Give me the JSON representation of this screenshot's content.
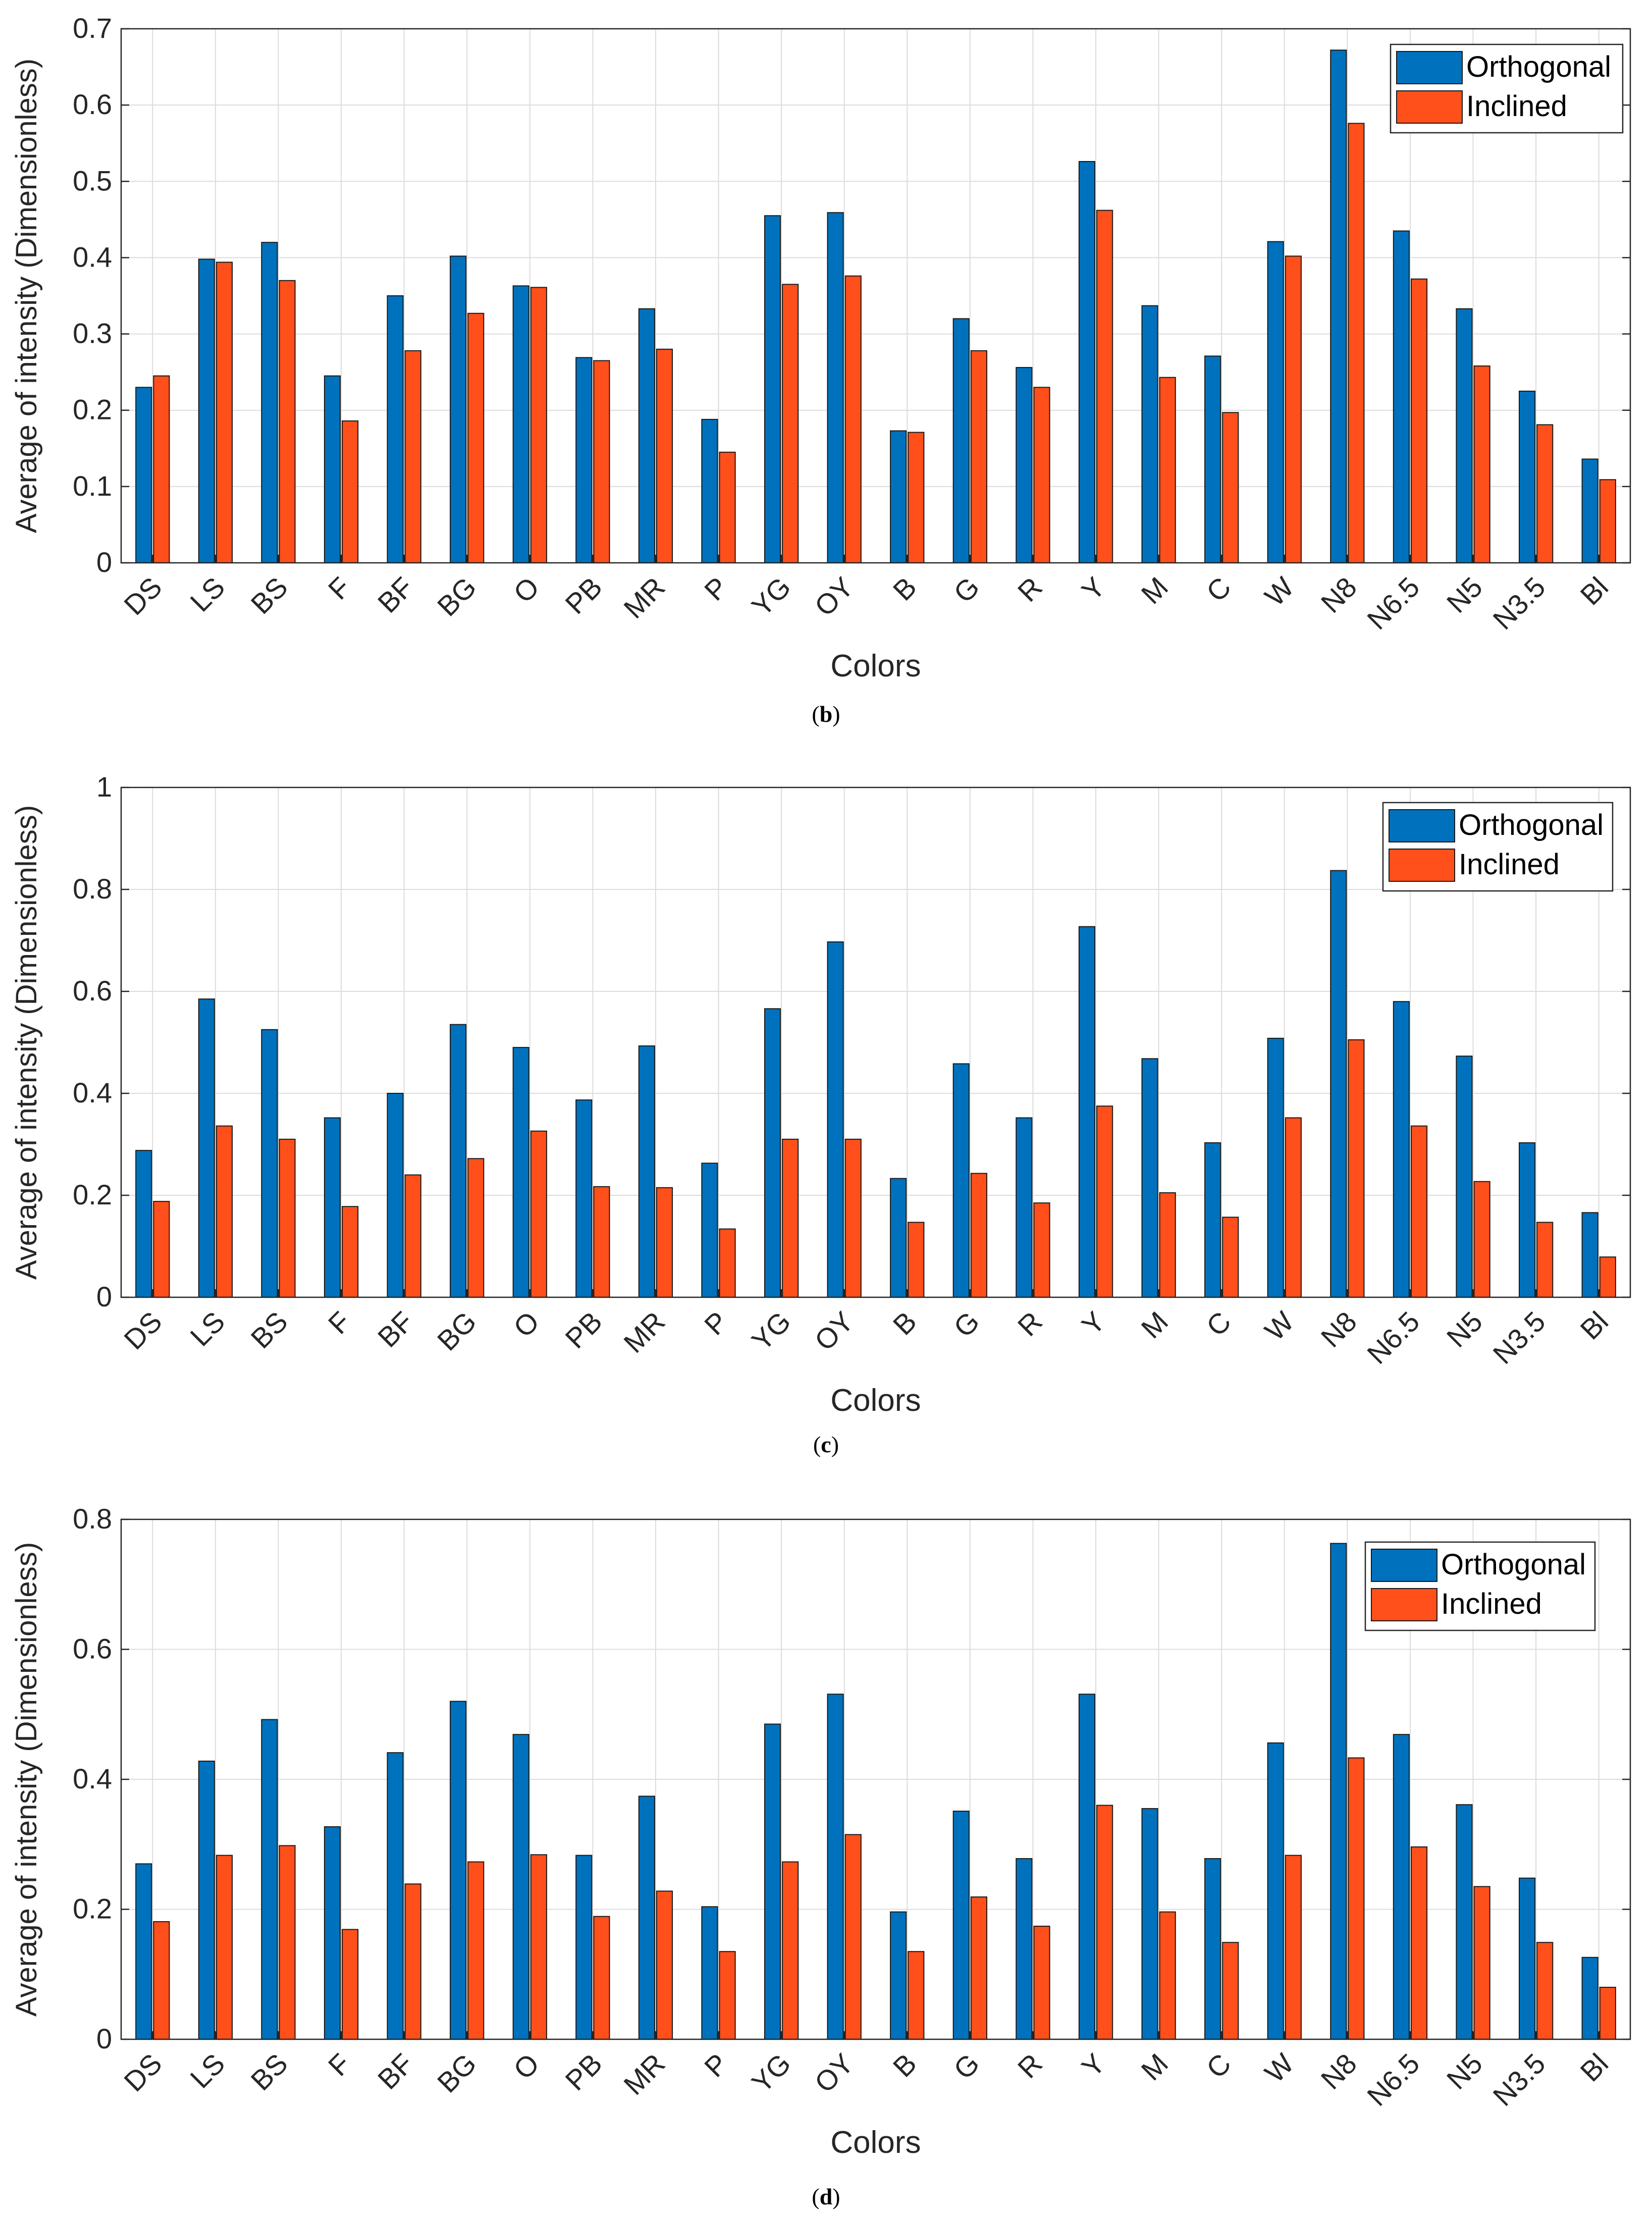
{
  "colors": {
    "orthogonal": "#0072bd",
    "inclined": "#ff4f1a"
  },
  "chart_data": [
    {
      "type": "bar",
      "panel_label": "b",
      "categories": [
        "DS",
        "LS",
        "BS",
        "F",
        "BF",
        "BG",
        "O",
        "PB",
        "MR",
        "P",
        "YG",
        "OY",
        "B",
        "G",
        "R",
        "Y",
        "M",
        "C",
        "W",
        "N8",
        "N6.5",
        "N5",
        "N3.5",
        "Bl"
      ],
      "series": [
        {
          "name": "Orthogonal",
          "values": [
            0.23,
            0.398,
            0.42,
            0.245,
            0.35,
            0.402,
            0.363,
            0.269,
            0.333,
            0.188,
            0.455,
            0.459,
            0.173,
            0.32,
            0.256,
            0.526,
            0.337,
            0.271,
            0.421,
            0.672,
            0.435,
            0.333,
            0.225,
            0.136
          ]
        },
        {
          "name": "Inclined",
          "values": [
            0.245,
            0.394,
            0.37,
            0.186,
            0.278,
            0.327,
            0.361,
            0.265,
            0.28,
            0.145,
            0.365,
            0.376,
            0.171,
            0.278,
            0.23,
            0.462,
            0.243,
            0.197,
            0.402,
            0.576,
            0.372,
            0.258,
            0.181,
            0.109
          ]
        }
      ],
      "title": "",
      "xlabel": "Colors",
      "ylabel": "Average of intensity (Dimensionless)",
      "ylim": [
        0,
        0.7
      ],
      "yticks": [
        0,
        0.1,
        0.2,
        0.3,
        0.4,
        0.5,
        0.6,
        0.7
      ],
      "ytick_labels": [
        "0",
        "0.1",
        "0.2",
        "0.3",
        "0.4",
        "0.5",
        "0.6",
        "0.7"
      ],
      "grid": true,
      "legend": "top-right"
    },
    {
      "type": "bar",
      "panel_label": "c",
      "categories": [
        "DS",
        "LS",
        "BS",
        "F",
        "BF",
        "BG",
        "O",
        "PB",
        "MR",
        "P",
        "YG",
        "OY",
        "B",
        "G",
        "R",
        "Y",
        "M",
        "C",
        "W",
        "N8",
        "N6.5",
        "N5",
        "N3.5",
        "Bl"
      ],
      "series": [
        {
          "name": "Orthogonal",
          "values": [
            0.288,
            0.585,
            0.525,
            0.352,
            0.4,
            0.535,
            0.49,
            0.387,
            0.493,
            0.263,
            0.566,
            0.697,
            0.233,
            0.458,
            0.352,
            0.727,
            0.468,
            0.303,
            0.508,
            0.837,
            0.58,
            0.473,
            0.303,
            0.166
          ]
        },
        {
          "name": "Inclined",
          "values": [
            0.188,
            0.336,
            0.31,
            0.178,
            0.24,
            0.272,
            0.326,
            0.217,
            0.215,
            0.134,
            0.31,
            0.31,
            0.147,
            0.243,
            0.185,
            0.375,
            0.205,
            0.157,
            0.352,
            0.505,
            0.336,
            0.227,
            0.147,
            0.079
          ]
        }
      ],
      "title": "",
      "xlabel": "Colors",
      "ylabel": "Average of intensity (Dimensionless)",
      "ylim": [
        0,
        1
      ],
      "yticks": [
        0,
        0.2,
        0.4,
        0.6,
        0.8,
        1
      ],
      "ytick_labels": [
        "0",
        "0.2",
        "0.4",
        "0.6",
        "0.8",
        "1"
      ],
      "grid": true,
      "legend": "top-right"
    },
    {
      "type": "bar",
      "panel_label": "d",
      "categories": [
        "DS",
        "LS",
        "BS",
        "F",
        "BF",
        "BG",
        "O",
        "PB",
        "MR",
        "P",
        "YG",
        "OY",
        "B",
        "G",
        "R",
        "Y",
        "M",
        "C",
        "W",
        "N8",
        "N6.5",
        "N5",
        "N3.5",
        "Bl"
      ],
      "series": [
        {
          "name": "Orthogonal",
          "values": [
            0.27,
            0.428,
            0.492,
            0.327,
            0.441,
            0.52,
            0.469,
            0.283,
            0.374,
            0.204,
            0.485,
            0.531,
            0.196,
            0.351,
            0.278,
            0.531,
            0.355,
            0.278,
            0.456,
            0.763,
            0.469,
            0.361,
            0.248,
            0.126
          ]
        },
        {
          "name": "Inclined",
          "values": [
            0.181,
            0.283,
            0.298,
            0.169,
            0.239,
            0.273,
            0.284,
            0.189,
            0.228,
            0.135,
            0.273,
            0.315,
            0.135,
            0.219,
            0.174,
            0.36,
            0.196,
            0.149,
            0.283,
            0.433,
            0.296,
            0.235,
            0.149,
            0.08
          ]
        }
      ],
      "title": "",
      "xlabel": "Colors",
      "ylabel": "Average of intensity (Dimensionless)",
      "ylim": [
        0,
        0.8
      ],
      "yticks": [
        0,
        0.2,
        0.4,
        0.6,
        0.8
      ],
      "ytick_labels": [
        "0",
        "0.2",
        "0.4",
        "0.6",
        "0.8"
      ],
      "grid": true,
      "legend": "top-right"
    }
  ],
  "captions": [
    "b",
    "c",
    "d"
  ]
}
